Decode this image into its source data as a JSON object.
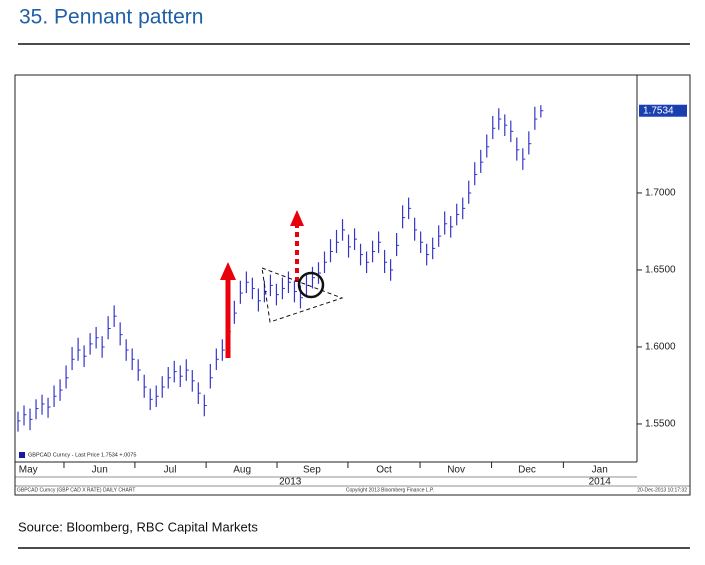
{
  "chart_data": {
    "type": "ohlc",
    "title": "35. Pennant pattern",
    "source": "Source: Bloomberg, RBC Capital Markets",
    "legend_text": "GBPCAD Curncy - Last Price 1.7534 +.0075",
    "footer_left": "GBPCAD Curncy (GBP CAD X RATE) DAILY CHART",
    "footer_center": "Copyright 2013 Bloomberg Finance L.P.",
    "footer_right": "20-Dec-2013 10:17:32",
    "last_price": 1.7534,
    "color": "#3535c8",
    "xlim": [
      -0.5,
      103
    ],
    "xticks": [
      {
        "value": 1.7,
        "label": "May"
      },
      {
        "value": 13.6,
        "label": "Jun"
      },
      {
        "value": 25.3,
        "label": "Jul"
      },
      {
        "value": 37.3,
        "label": "Aug"
      },
      {
        "value": 48.9,
        "label": "Sep"
      },
      {
        "value": 60.9,
        "label": "Oct"
      },
      {
        "value": 72.9,
        "label": "Nov"
      },
      {
        "value": 84.7,
        "label": "Dec"
      },
      {
        "value": 96.8,
        "label": "Jan"
      }
    ],
    "year_labels": [
      {
        "value": 45.3,
        "label": "2013"
      },
      {
        "value": 96.8,
        "label": "2014"
      }
    ],
    "ylim": [
      1.5253,
      1.7766
    ],
    "yticks": [
      {
        "value": 1.55,
        "label": "1.5500"
      },
      {
        "value": 1.6,
        "label": "1.6000"
      },
      {
        "value": 1.65,
        "label": "1.6500"
      },
      {
        "value": 1.7,
        "label": "1.7000"
      }
    ],
    "close": [
      1.552,
      1.556,
      1.553,
      1.56,
      1.563,
      1.561,
      1.568,
      1.572,
      1.58,
      1.592,
      1.598,
      1.594,
      1.602,
      1.606,
      1.6,
      1.612,
      1.62,
      1.608,
      1.598,
      1.592,
      1.585,
      1.574,
      1.566,
      1.568,
      1.574,
      1.58,
      1.584,
      1.581,
      1.585,
      1.578,
      1.57,
      1.562,
      1.58,
      1.592,
      1.598,
      1.61,
      1.622,
      1.635,
      1.642,
      1.638,
      1.63,
      1.636,
      1.64,
      1.634,
      1.638,
      1.642,
      1.636,
      1.632,
      1.64,
      1.645,
      1.648,
      1.655,
      1.662,
      1.668,
      1.676,
      1.665,
      1.67,
      1.66,
      1.655,
      1.662,
      1.668,
      1.655,
      1.65,
      1.666,
      1.684,
      1.69,
      1.676,
      1.668,
      1.66,
      1.664,
      1.672,
      1.68,
      1.678,
      1.686,
      1.69,
      1.7,
      1.712,
      1.72,
      1.73,
      1.742,
      1.748,
      1.744,
      1.74,
      1.728,
      1.722,
      1.732,
      1.748,
      1.7534
    ],
    "high": [
      1.558,
      1.562,
      1.56,
      1.566,
      1.569,
      1.567,
      1.575,
      1.579,
      1.588,
      1.6,
      1.606,
      1.601,
      1.609,
      1.613,
      1.607,
      1.62,
      1.627,
      1.616,
      1.605,
      1.599,
      1.592,
      1.582,
      1.573,
      1.575,
      1.581,
      1.587,
      1.591,
      1.588,
      1.592,
      1.585,
      1.577,
      1.569,
      1.589,
      1.599,
      1.605,
      1.618,
      1.63,
      1.643,
      1.649,
      1.645,
      1.638,
      1.643,
      1.647,
      1.641,
      1.645,
      1.649,
      1.643,
      1.64,
      1.647,
      1.652,
      1.655,
      1.662,
      1.67,
      1.676,
      1.683,
      1.673,
      1.677,
      1.667,
      1.662,
      1.669,
      1.675,
      1.663,
      1.657,
      1.674,
      1.692,
      1.697,
      1.684,
      1.675,
      1.667,
      1.671,
      1.679,
      1.688,
      1.685,
      1.693,
      1.697,
      1.708,
      1.72,
      1.728,
      1.738,
      1.75,
      1.755,
      1.751,
      1.747,
      1.736,
      1.729,
      1.74,
      1.756,
      1.757
    ],
    "low": [
      1.545,
      1.549,
      1.546,
      1.553,
      1.556,
      1.554,
      1.561,
      1.565,
      1.573,
      1.585,
      1.591,
      1.587,
      1.595,
      1.599,
      1.593,
      1.605,
      1.613,
      1.601,
      1.591,
      1.585,
      1.578,
      1.567,
      1.559,
      1.561,
      1.567,
      1.573,
      1.577,
      1.574,
      1.578,
      1.571,
      1.563,
      1.555,
      1.573,
      1.585,
      1.591,
      1.603,
      1.615,
      1.628,
      1.635,
      1.631,
      1.623,
      1.629,
      1.633,
      1.627,
      1.631,
      1.635,
      1.629,
      1.625,
      1.633,
      1.638,
      1.641,
      1.648,
      1.655,
      1.661,
      1.669,
      1.658,
      1.663,
      1.653,
      1.648,
      1.655,
      1.661,
      1.648,
      1.643,
      1.659,
      1.677,
      1.683,
      1.669,
      1.661,
      1.653,
      1.657,
      1.665,
      1.673,
      1.671,
      1.679,
      1.683,
      1.693,
      1.705,
      1.713,
      1.723,
      1.735,
      1.741,
      1.737,
      1.733,
      1.721,
      1.715,
      1.725,
      1.741,
      1.749
    ]
  }
}
